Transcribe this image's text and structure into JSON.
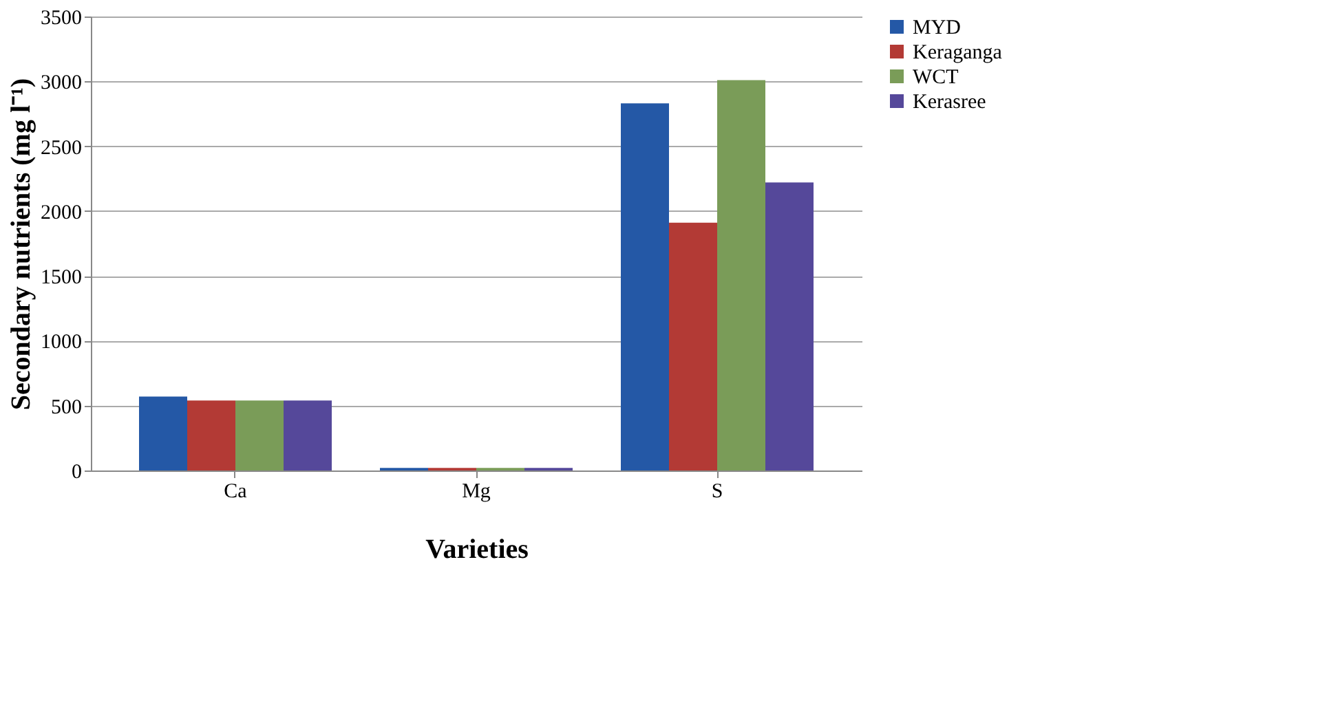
{
  "chart_data": {
    "type": "bar",
    "xlabel": "Varieties",
    "ylabel": "Secondary nutrients (mg l⁻¹)",
    "categories": [
      "Ca",
      "Mg",
      "S"
    ],
    "series": [
      {
        "name": "MYD",
        "color": "#2458a6",
        "values": [
          570,
          20,
          2830
        ]
      },
      {
        "name": "Keraganga",
        "color": "#b33a35",
        "values": [
          540,
          20,
          1910
        ]
      },
      {
        "name": "WCT",
        "color": "#7a9c58",
        "values": [
          540,
          20,
          3010
        ]
      },
      {
        "name": "Kerasree",
        "color": "#55489a",
        "values": [
          540,
          20,
          2220
        ]
      }
    ],
    "ylim": [
      0,
      3500
    ],
    "yticks": [
      0,
      500,
      1000,
      1500,
      2000,
      2500,
      3000,
      3500
    ],
    "grid": "y",
    "legend": "right"
  }
}
